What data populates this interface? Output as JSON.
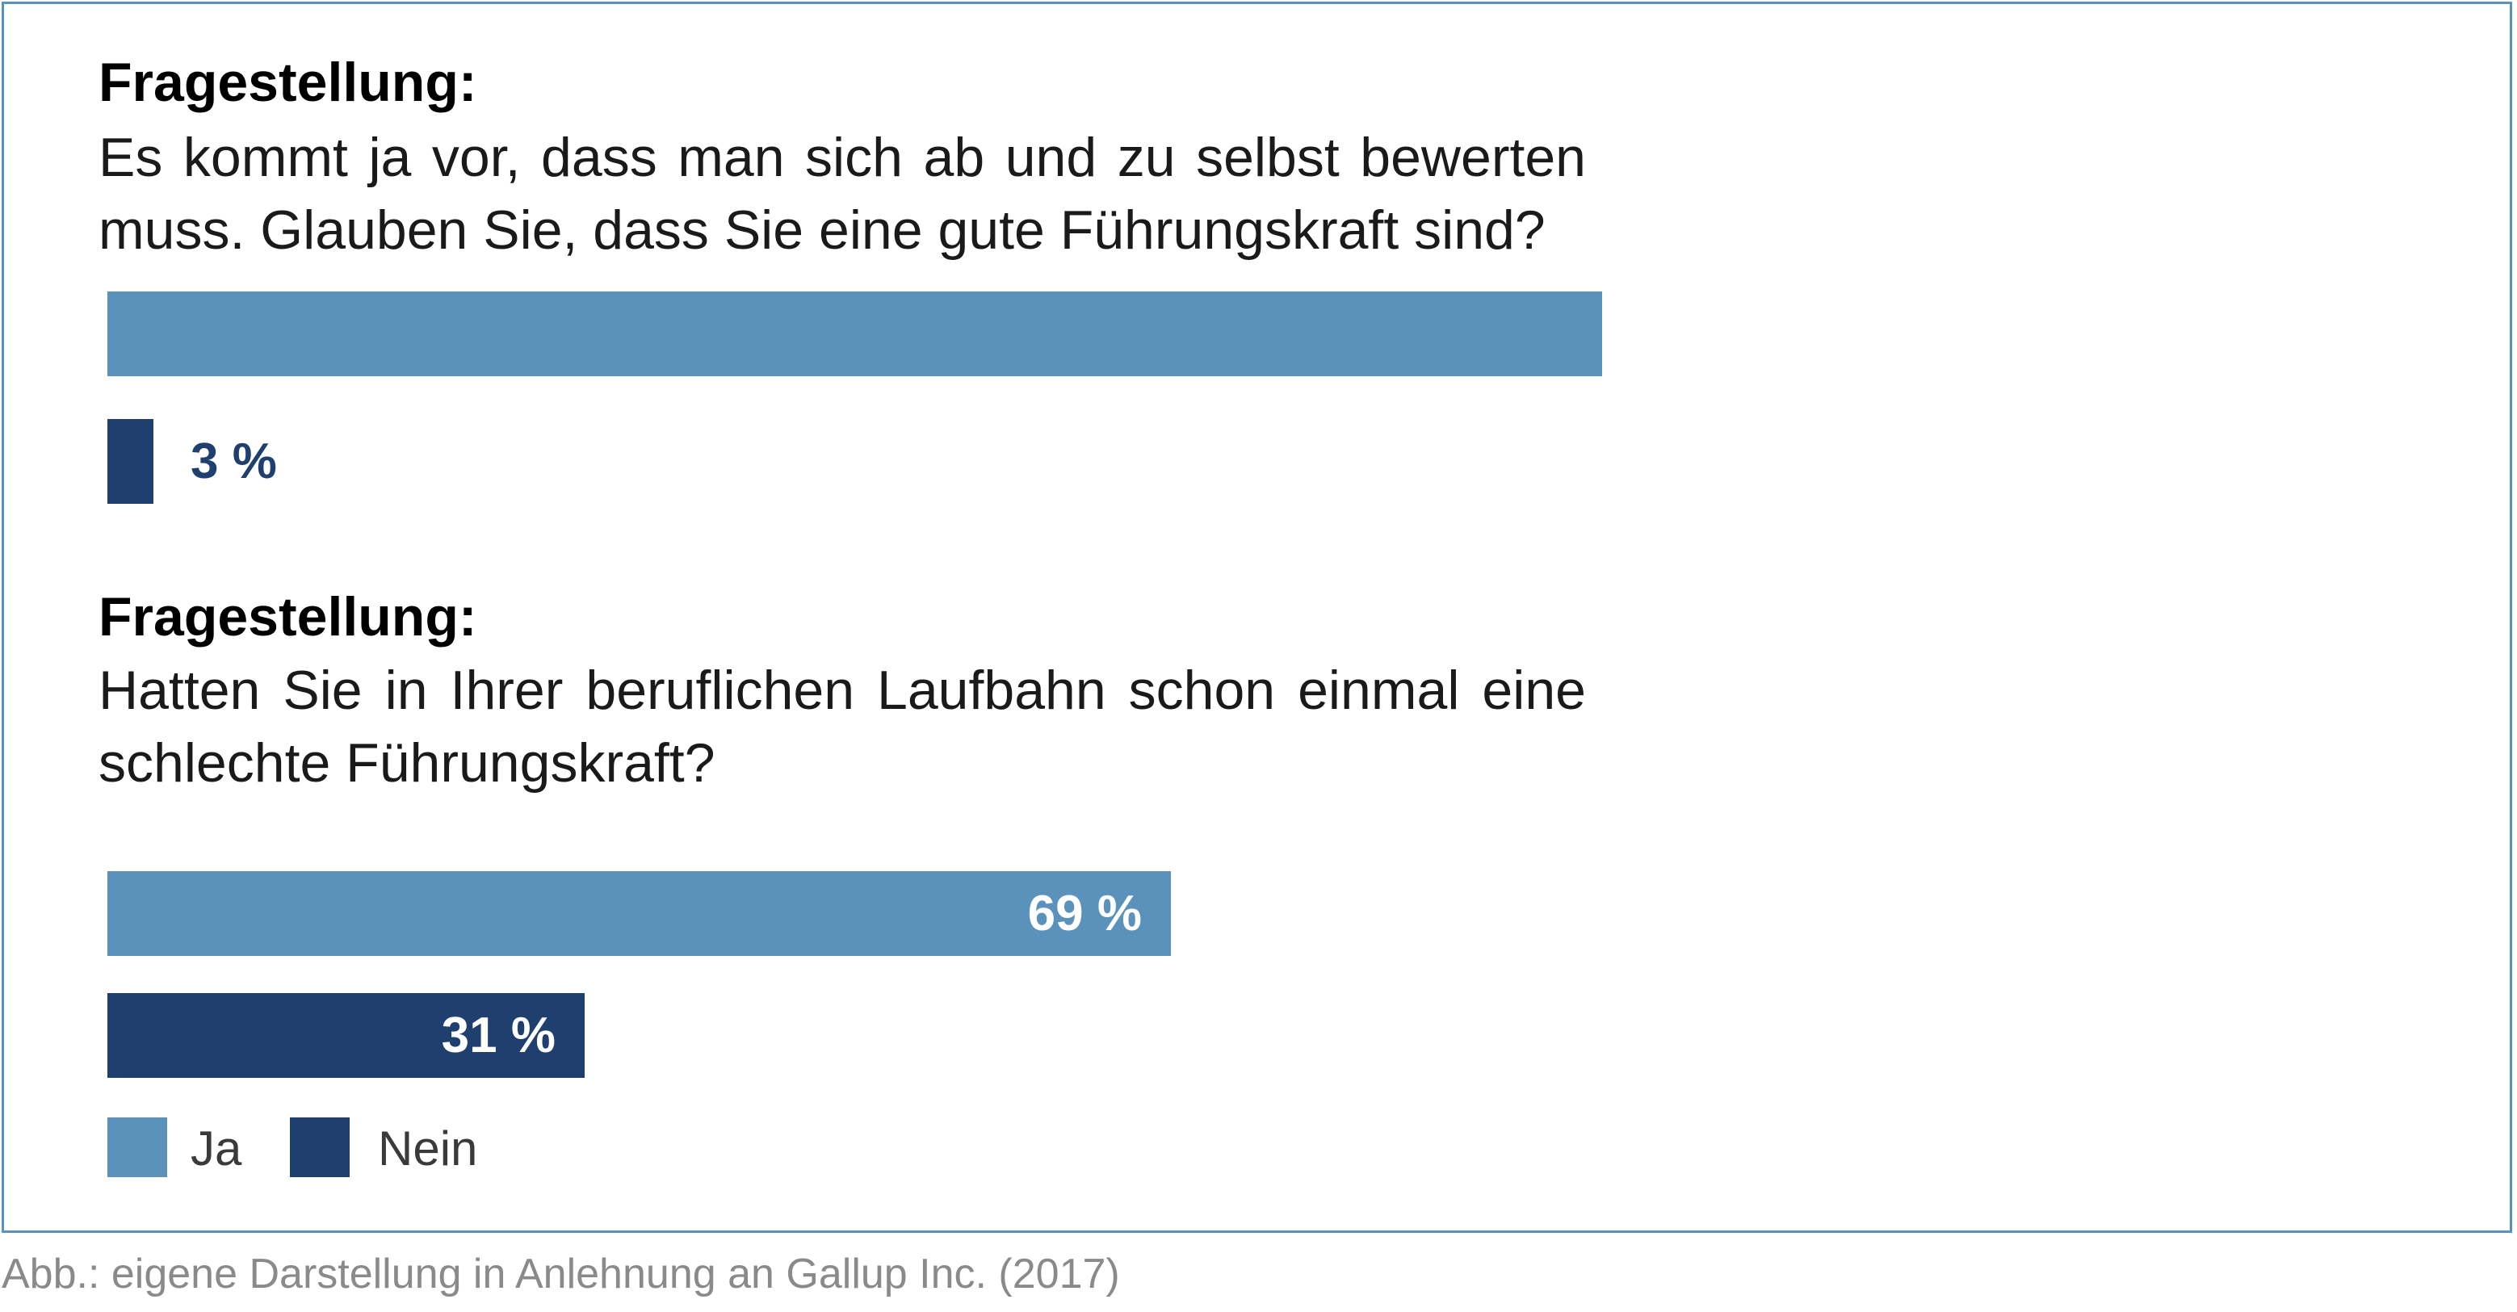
{
  "colors": {
    "ja": "#5b92bb",
    "nein": "#1f3f6e",
    "frame": "#5b92bb"
  },
  "chart_data": [
    {
      "type": "bar",
      "orientation": "horizontal",
      "heading": "Fragestellung:",
      "question": "Es kommt ja vor, dass man sich ab und zu selbst bewerten muss. Glauben Sie, dass Sie eine gute Führungskraft sind?",
      "xlim": [
        0,
        100
      ],
      "series": [
        {
          "name": "Ja",
          "value": 97,
          "label": ""
        },
        {
          "name": "Nein",
          "value": 3,
          "label": "3 %"
        }
      ]
    },
    {
      "type": "bar",
      "orientation": "horizontal",
      "heading": "Fragestellung:",
      "question": "Hatten Sie in Ihrer beruflichen Laufbahn schon einmal eine schlechte Führungskraft?",
      "xlim": [
        0,
        100
      ],
      "series": [
        {
          "name": "Ja",
          "value": 69,
          "label": "69 %"
        },
        {
          "name": "Nein",
          "value": 31,
          "label": "31 %"
        }
      ]
    }
  ],
  "legend": {
    "items": [
      {
        "label": "Ja",
        "color": "#5b92bb"
      },
      {
        "label": "Nein",
        "color": "#1f3f6e"
      }
    ],
    "position": "bottom-left"
  },
  "source": "Abb.: eigene Darstellung in Anlehnung an Gallup Inc. (2017)"
}
